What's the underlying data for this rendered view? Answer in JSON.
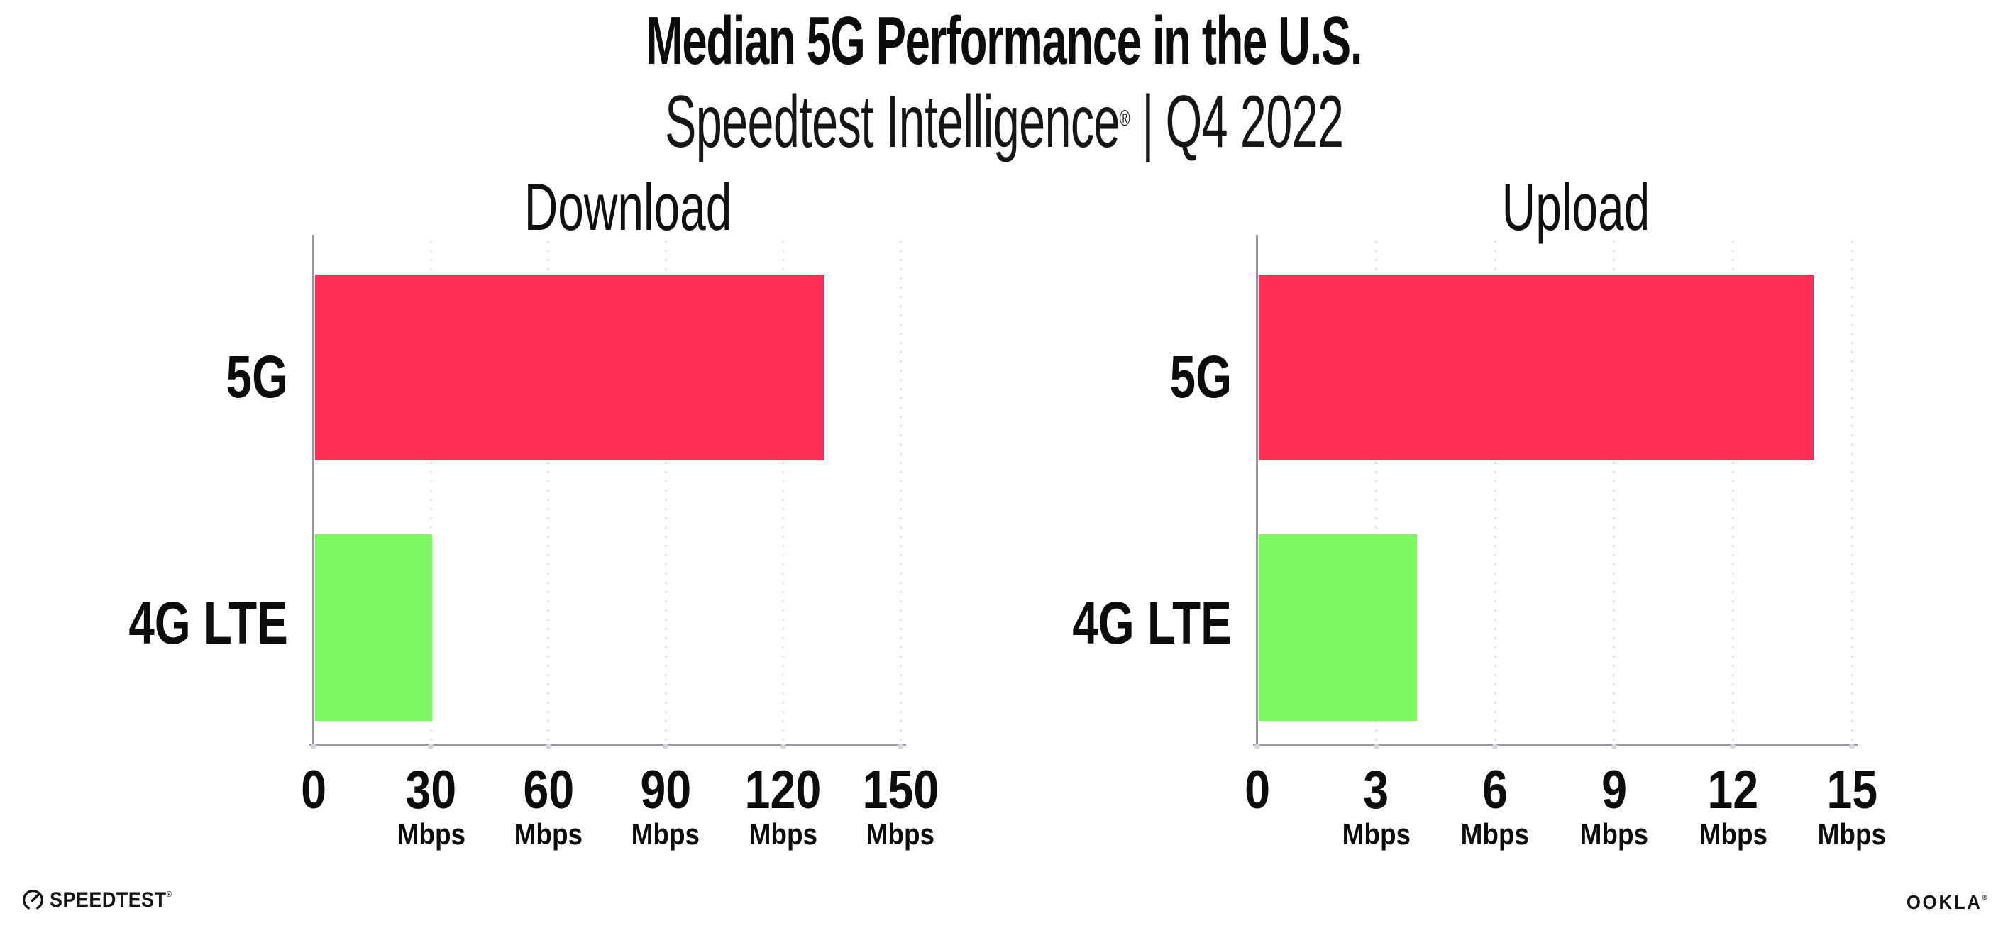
{
  "header": {
    "title": "Median 5G Performance in the U.S.",
    "subtitle": {
      "brand": "Speedtest Intelligence",
      "registered": "®",
      "separator": "|",
      "period": "Q4 2022"
    }
  },
  "chart_data": [
    {
      "type": "bar",
      "orientation": "horizontal",
      "title": "Download",
      "categories": [
        "5G",
        "4G LTE"
      ],
      "values": [
        130,
        30
      ],
      "unit": "Mbps",
      "xlabel": "",
      "ylabel": "",
      "xlim": [
        0,
        150
      ],
      "xticks": [
        0,
        30,
        60,
        90,
        120,
        150
      ],
      "bar_colors": [
        "#ff2e56",
        "#7df763"
      ],
      "grid": "vertical-dotted",
      "legend": "none"
    },
    {
      "type": "bar",
      "orientation": "horizontal",
      "title": "Upload",
      "categories": [
        "5G",
        "4G LTE"
      ],
      "values": [
        14,
        4
      ],
      "unit": "Mbps",
      "xlabel": "",
      "ylabel": "",
      "xlim": [
        0,
        15
      ],
      "xticks": [
        0,
        3,
        6,
        9,
        12,
        15
      ],
      "bar_colors": [
        "#ff2e56",
        "#7df763"
      ],
      "grid": "vertical-dotted",
      "legend": "none"
    }
  ],
  "footer": {
    "speedtest_logo_text": "SPEEDTEST",
    "speedtest_registered": "®",
    "ookla_logo_text": "OOKLA",
    "ookla_registered": "®"
  },
  "colors": {
    "bar_5g": "#ff2e56",
    "bar_4g_lte": "#7df763",
    "axis": "#97979d",
    "gridline": "#e2e2ec",
    "tick_dot": "#d5d5e0",
    "text": "#0c0c0c",
    "background": "#ffffff"
  }
}
